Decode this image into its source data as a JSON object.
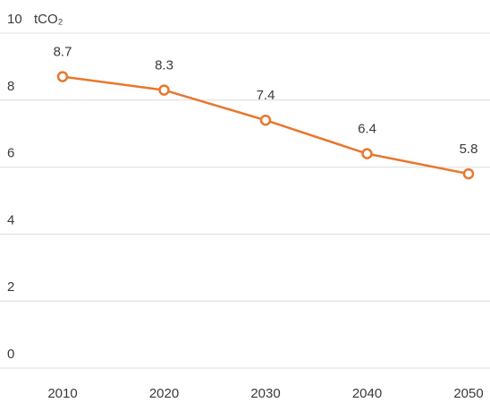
{
  "chart_data": {
    "type": "line",
    "y_label": "tCO₂",
    "categories": [
      "2010",
      "2020",
      "2030",
      "2040",
      "2050"
    ],
    "values": [
      8.7,
      8.3,
      7.4,
      6.4,
      5.8
    ],
    "color": "#e8772e",
    "ylim": [
      0,
      10
    ],
    "yticks": [
      0,
      2,
      4,
      6,
      8,
      10
    ],
    "grid": true
  }
}
